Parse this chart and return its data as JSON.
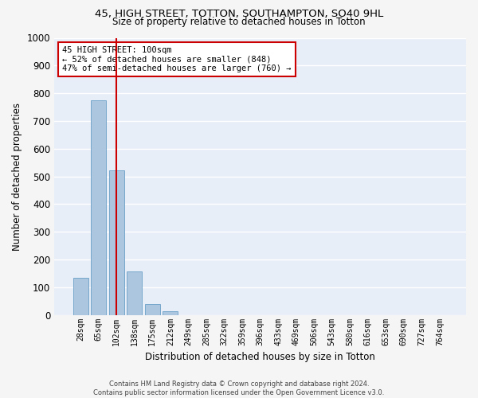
{
  "title1": "45, HIGH STREET, TOTTON, SOUTHAMPTON, SO40 9HL",
  "title2": "Size of property relative to detached houses in Totton",
  "xlabel": "Distribution of detached houses by size in Totton",
  "ylabel": "Number of detached properties",
  "footer1": "Contains HM Land Registry data © Crown copyright and database right 2024.",
  "footer2": "Contains public sector information licensed under the Open Government Licence v3.0.",
  "bar_labels": [
    "28sqm",
    "65sqm",
    "102sqm",
    "138sqm",
    "175sqm",
    "212sqm",
    "249sqm",
    "285sqm",
    "322sqm",
    "359sqm",
    "396sqm",
    "433sqm",
    "469sqm",
    "506sqm",
    "543sqm",
    "580sqm",
    "616sqm",
    "653sqm",
    "690sqm",
    "727sqm",
    "764sqm"
  ],
  "bar_values": [
    133,
    775,
    521,
    158,
    38,
    14,
    0,
    0,
    0,
    0,
    0,
    0,
    0,
    0,
    0,
    0,
    0,
    0,
    0,
    0,
    0
  ],
  "bar_color": "#adc6e0",
  "bar_edge_color": "#6a9fc8",
  "background_color": "#e8eef8",
  "grid_color": "#ffffff",
  "annotation_line1": "45 HIGH STREET: 100sqm",
  "annotation_line2": "← 52% of detached houses are smaller (848)",
  "annotation_line3": "47% of semi-detached houses are larger (760) →",
  "vline_x": 2,
  "vline_color": "#cc0000",
  "box_color": "#cc0000",
  "ylim": [
    0,
    1000
  ],
  "yticks": [
    0,
    100,
    200,
    300,
    400,
    500,
    600,
    700,
    800,
    900,
    1000
  ]
}
